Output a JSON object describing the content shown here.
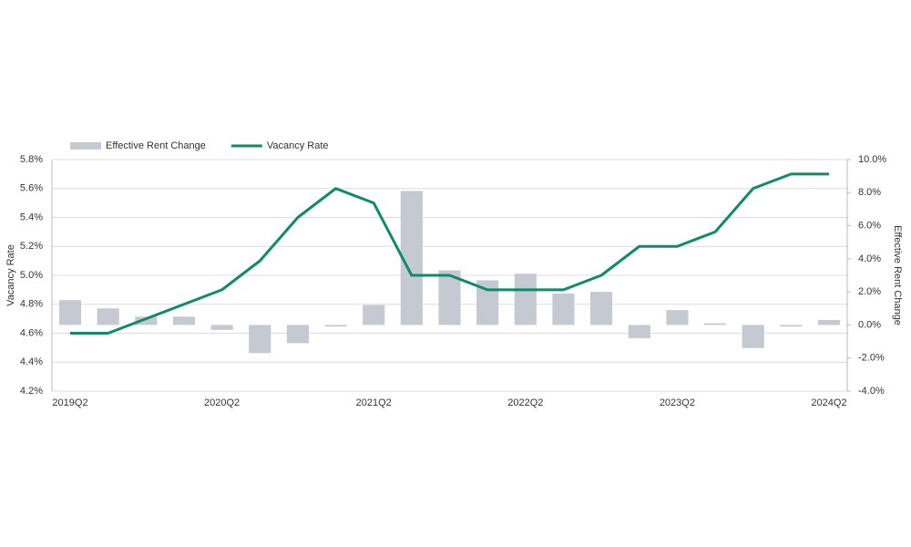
{
  "chart_data": {
    "type": "combo",
    "categories": [
      "2019Q2",
      null,
      null,
      null,
      "2020Q2",
      null,
      null,
      null,
      "2021Q2",
      null,
      null,
      null,
      "2022Q2",
      null,
      null,
      null,
      "2023Q2",
      null,
      null,
      null,
      "2024Q2"
    ],
    "series": [
      {
        "name": "Effective Rent Change",
        "type": "bar",
        "axis": "y2",
        "color": "#c5c9d2",
        "values": [
          1.5,
          1.0,
          0.5,
          0.5,
          -0.3,
          -1.7,
          -1.1,
          -0.1,
          1.2,
          8.1,
          3.3,
          2.7,
          3.1,
          1.9,
          2.0,
          -0.8,
          0.9,
          0.1,
          -1.4,
          -0.1,
          0.3
        ]
      },
      {
        "name": "Vacancy Rate",
        "type": "line",
        "axis": "y",
        "color": "#0f8b6b",
        "values": [
          4.6,
          4.6,
          4.7,
          4.8,
          4.9,
          5.1,
          5.4,
          5.6,
          5.5,
          5.0,
          5.0,
          4.9,
          4.9,
          4.9,
          5.0,
          5.2,
          5.2,
          5.3,
          5.6,
          5.7,
          5.7
        ]
      }
    ],
    "ylabel": "Vacancy Rate",
    "y2label": "Effective Rent Change",
    "ylim": [
      4.2,
      5.8
    ],
    "yticks": [
      {
        "value": 4.2,
        "label": "4.2%"
      },
      {
        "value": 4.4,
        "label": "4.4%"
      },
      {
        "value": 4.6,
        "label": "4.6%"
      },
      {
        "value": 4.8,
        "label": "4.8%"
      },
      {
        "value": 5.0,
        "label": "5.0%"
      },
      {
        "value": 5.2,
        "label": "5.2%"
      },
      {
        "value": 5.4,
        "label": "5.4%"
      },
      {
        "value": 5.6,
        "label": "5.6%"
      },
      {
        "value": 5.8,
        "label": "5.8%"
      }
    ],
    "y2lim": [
      -4,
      10
    ],
    "y2ticks": [
      {
        "value": -4,
        "label": "-4.0%"
      },
      {
        "value": -2,
        "label": "-2.0%"
      },
      {
        "value": 0,
        "label": "0.0%"
      },
      {
        "value": 2,
        "label": "2.0%"
      },
      {
        "value": 4,
        "label": "4.0%"
      },
      {
        "value": 6,
        "label": "6.0%"
      },
      {
        "value": 8,
        "label": "8.0%"
      },
      {
        "value": 10,
        "label": "10.0%"
      }
    ],
    "grid": true,
    "legend": "top-left"
  }
}
